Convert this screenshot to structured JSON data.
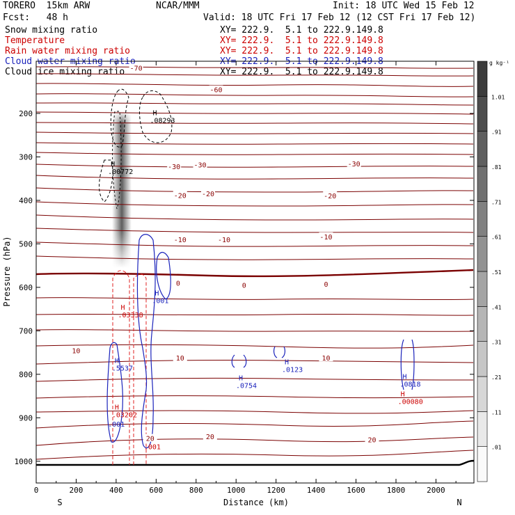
{
  "header": {
    "model": "TORERO  15km ARW",
    "org": "NCAR/MMM",
    "init": "Init: 18 UTC Wed 15 Feb 12",
    "fcst": "Fcst:   48 h",
    "valid": "Valid: 18 UTC Fri 17 Feb 12 (12 CST Fri 17 Feb 12)"
  },
  "fields": [
    {
      "label": "Snow mixing ratio",
      "xy": "XY= 222.9.  5.1 to 222.9.149.8",
      "color": "#000000"
    },
    {
      "label": "Temperature",
      "xy": "XY= 222.9.  5.1 to 222.9.149.8",
      "color": "#cc0000"
    },
    {
      "label": "Rain water mixing ratio",
      "xy": "XY= 222.9.  5.1 to 222.9.149.8",
      "color": "#cc0000"
    },
    {
      "label": "Cloud water mixing ratio",
      "xy": "XY= 222.9.  5.1 to 222.9.149.8",
      "color": "#1a22bb"
    },
    {
      "label": "Cloud ice mixing ratio",
      "xy": "XY= 222.9.  5.1 to 222.9.149.8",
      "color": "#000000"
    }
  ],
  "chart_data": {
    "type": "cross-section contour",
    "xlabel": "Distance (km)",
    "ylabel": "Pressure (hPa)",
    "xlim": [
      0,
      2190
    ],
    "ylim": [
      1050,
      80
    ],
    "xticks": [
      0,
      200,
      400,
      600,
      800,
      1000,
      1200,
      1400,
      1600,
      1800,
      2000
    ],
    "yticks": [
      200,
      300,
      400,
      500,
      600,
      700,
      800,
      900,
      1000
    ],
    "left_end_label": "S",
    "right_end_label": "N",
    "colorbar": {
      "unit": "g kg⁻¹",
      "ticks": [
        ".01",
        ".11",
        ".21",
        ".31",
        ".41",
        ".51",
        ".61",
        ".71",
        ".81",
        ".91",
        "1.01"
      ]
    },
    "temperature_labels": [
      {
        "text": "-70",
        "x": 500,
        "p": 95
      },
      {
        "text": "-60",
        "x": 900,
        "p": 145
      },
      {
        "text": "-30",
        "x": 690,
        "p": 322
      },
      {
        "text": "-30",
        "x": 820,
        "p": 318
      },
      {
        "text": "-30",
        "x": 1590,
        "p": 315
      },
      {
        "text": "-20",
        "x": 720,
        "p": 388
      },
      {
        "text": "-20",
        "x": 860,
        "p": 384
      },
      {
        "text": "-20",
        "x": 1470,
        "p": 389
      },
      {
        "text": "-10",
        "x": 720,
        "p": 490
      },
      {
        "text": "-10",
        "x": 940,
        "p": 490
      },
      {
        "text": "-10",
        "x": 1450,
        "p": 483
      },
      {
        "text": "0",
        "x": 710,
        "p": 590
      },
      {
        "text": "0",
        "x": 1040,
        "p": 595
      },
      {
        "text": "0",
        "x": 1450,
        "p": 592
      },
      {
        "text": "10",
        "x": 200,
        "p": 745
      },
      {
        "text": "10",
        "x": 720,
        "p": 762
      },
      {
        "text": "10",
        "x": 1450,
        "p": 762
      },
      {
        "text": "20",
        "x": 570,
        "p": 947
      },
      {
        "text": "20",
        "x": 870,
        "p": 943
      },
      {
        "text": "20",
        "x": 1680,
        "p": 950
      }
    ],
    "extrema_labels": [
      {
        "marker": "H",
        "value": ".08293",
        "x": 590,
        "p": 215,
        "field": "Cloud ice mixing ratio"
      },
      {
        "marker": "H",
        "value": ".00772",
        "x": 380,
        "p": 333,
        "field": "Snow mixing ratio"
      },
      {
        "marker": "H",
        "value": ".03338",
        "x": 430,
        "p": 663,
        "field": "Rain water mixing ratio"
      },
      {
        "marker": "H",
        "value": ".001",
        "x": 600,
        "p": 630,
        "field": "Cloud water mixing ratio"
      },
      {
        "marker": "H",
        "value": ".5537",
        "x": 400,
        "p": 785,
        "field": "Cloud water mixing ratio"
      },
      {
        "marker": "H",
        "value": ".0754",
        "x": 1020,
        "p": 825,
        "field": "Cloud water mixing ratio"
      },
      {
        "marker": "H",
        "value": ".0123",
        "x": 1250,
        "p": 788,
        "field": "Cloud water mixing ratio"
      },
      {
        "marker": "H",
        "value": ".0818",
        "x": 1840,
        "p": 822,
        "field": "Cloud water mixing ratio"
      },
      {
        "marker": "H",
        "value": ".00080",
        "x": 1830,
        "p": 862,
        "field": "Rain water mixing ratio"
      },
      {
        "marker": "H",
        "value": ".03202",
        "x": 400,
        "p": 892,
        "field": "Rain water mixing ratio"
      },
      {
        "marker": "",
        "value": ".001",
        "x": 380,
        "p": 914,
        "field": "Cloud water mixing ratio"
      },
      {
        "marker": "",
        "value": ".001",
        "x": 560,
        "p": 966,
        "field": "Rain water mixing ratio"
      }
    ],
    "freezing_level_hPa": 580
  }
}
